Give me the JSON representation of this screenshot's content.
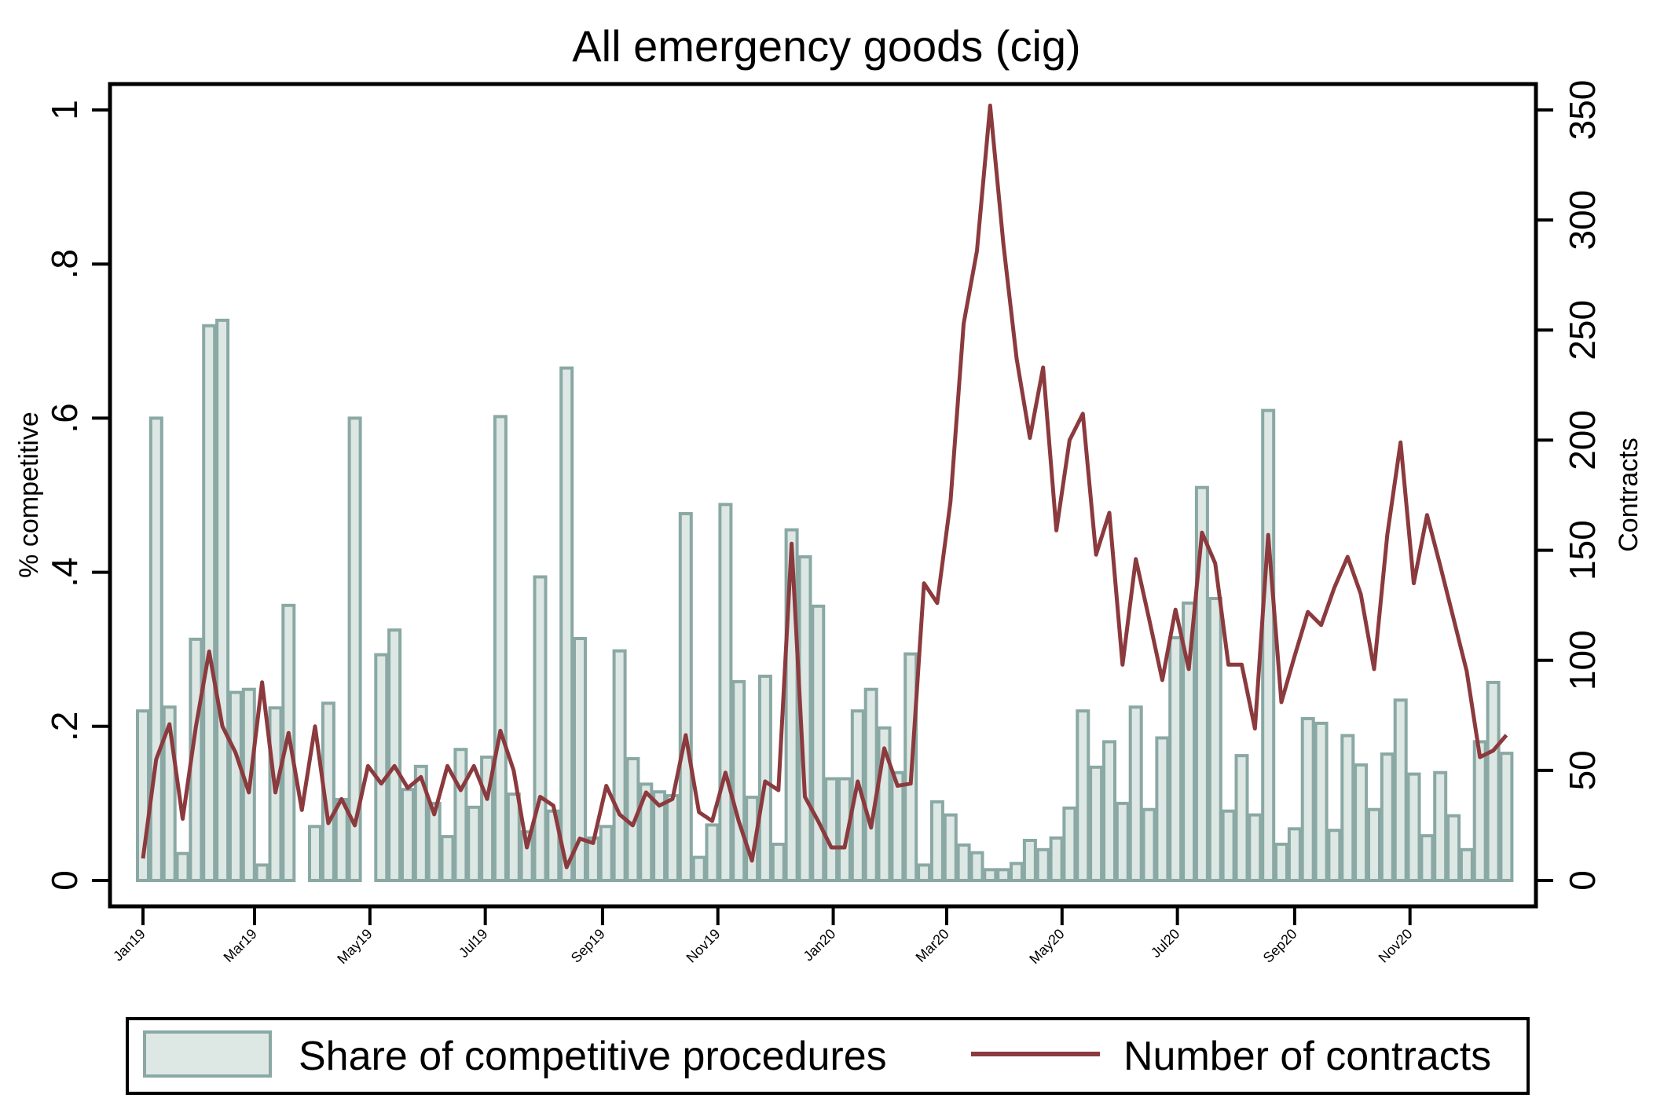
{
  "chart_data": {
    "type": "bar+line",
    "title": "All emergency goods (cig)",
    "ylabel_left": "% competitive",
    "ylabel_right": "Contracts",
    "ylim_left": [
      0,
      1
    ],
    "ylim_right": [
      0,
      350
    ],
    "yticks_left": [
      {
        "value": 0,
        "label": "0"
      },
      {
        "value": 0.2,
        "label": ".2"
      },
      {
        "value": 0.4,
        "label": ".4"
      },
      {
        "value": 0.6,
        "label": ".6"
      },
      {
        "value": 0.8,
        "label": ".8"
      },
      {
        "value": 1,
        "label": "1"
      }
    ],
    "yticks_right": [
      {
        "value": 0,
        "label": "0"
      },
      {
        "value": 50,
        "label": "50"
      },
      {
        "value": 100,
        "label": "100"
      },
      {
        "value": 150,
        "label": "150"
      },
      {
        "value": 200,
        "label": "200"
      },
      {
        "value": 250,
        "label": "250"
      },
      {
        "value": 300,
        "label": "300"
      },
      {
        "value": 350,
        "label": "350"
      }
    ],
    "x_unit": "week",
    "x_start": "Jan19",
    "xticks": [
      {
        "day": 0,
        "label": "Jan19"
      },
      {
        "day": 59,
        "label": "Mar19"
      },
      {
        "day": 120,
        "label": "May19"
      },
      {
        "day": 181,
        "label": "Jul19"
      },
      {
        "day": 243,
        "label": "Sep19"
      },
      {
        "day": 304,
        "label": "Nov19"
      },
      {
        "day": 365,
        "label": "Jan20"
      },
      {
        "day": 425,
        "label": "Mar20"
      },
      {
        "day": 486,
        "label": "May20"
      },
      {
        "day": 547,
        "label": "Jul20"
      },
      {
        "day": 609,
        "label": "Sep20"
      },
      {
        "day": 670,
        "label": "Nov20"
      }
    ],
    "series": [
      {
        "name": "Share of competitive procedures",
        "type": "bar",
        "axis": "left",
        "fill": "#dde7e4",
        "stroke": "#8aa8a4",
        "values": [
          0.22,
          0.6,
          0.225,
          0.035,
          0.313,
          0.72,
          0.727,
          0.244,
          0.248,
          0.02,
          0.224,
          0.357,
          null,
          0.07,
          0.23,
          0.105,
          0.6,
          null,
          0.293,
          0.325,
          0.118,
          0.148,
          0.1,
          0.057,
          0.17,
          0.095,
          0.16,
          0.602,
          0.112,
          0.063,
          0.394,
          0.09,
          0.665,
          0.314,
          0.055,
          0.07,
          0.298,
          0.158,
          0.125,
          0.115,
          0.11,
          0.476,
          0.03,
          0.072,
          0.488,
          0.258,
          0.108,
          0.265,
          0.047,
          0.455,
          0.42,
          0.356,
          0.132,
          0.132,
          0.22,
          0.248,
          0.198,
          0.14,
          0.294,
          0.02,
          0.102,
          0.085,
          0.046,
          0.036,
          0.014,
          0.014,
          0.022,
          0.052,
          0.04,
          0.055,
          0.094,
          0.22,
          0.147,
          0.18,
          0.1,
          0.225,
          0.092,
          0.185,
          0.315,
          0.36,
          0.51,
          0.366,
          0.09,
          0.162,
          0.085,
          0.61,
          0.047,
          0.067,
          0.21,
          0.204,
          0.065,
          0.188,
          0.15,
          0.092,
          0.164,
          0.234,
          0.138,
          0.058,
          0.14,
          0.084,
          0.04,
          0.18,
          0.257,
          0.165
        ]
      },
      {
        "name": "Number of contracts",
        "type": "line",
        "axis": "right",
        "color": "#8b3a3e",
        "values": [
          10,
          55,
          71,
          28,
          70,
          104,
          70,
          58,
          40,
          90,
          40,
          67,
          32,
          70,
          26,
          37,
          25,
          52,
          44,
          52,
          42,
          47,
          30,
          52,
          41,
          52,
          37,
          68,
          50,
          15,
          38,
          34,
          6,
          19,
          17,
          43,
          30,
          25,
          40,
          34,
          37,
          66,
          31,
          27,
          49,
          27,
          9,
          45,
          41,
          153,
          38,
          27,
          15,
          15,
          45,
          24,
          60,
          43,
          44,
          135,
          126,
          172,
          253,
          286,
          352,
          289,
          237,
          201,
          233,
          159,
          200,
          212,
          148,
          167,
          98,
          146,
          119,
          91,
          123,
          96,
          158,
          144,
          98,
          98,
          69,
          157,
          81,
          102,
          122,
          116,
          133,
          147,
          130,
          96,
          157,
          199,
          135,
          166,
          143,
          119,
          95,
          56,
          59,
          66
        ]
      }
    ],
    "legend": {
      "position": "bottom",
      "entries": [
        "Share of competitive procedures",
        "Number of contracts"
      ]
    }
  }
}
